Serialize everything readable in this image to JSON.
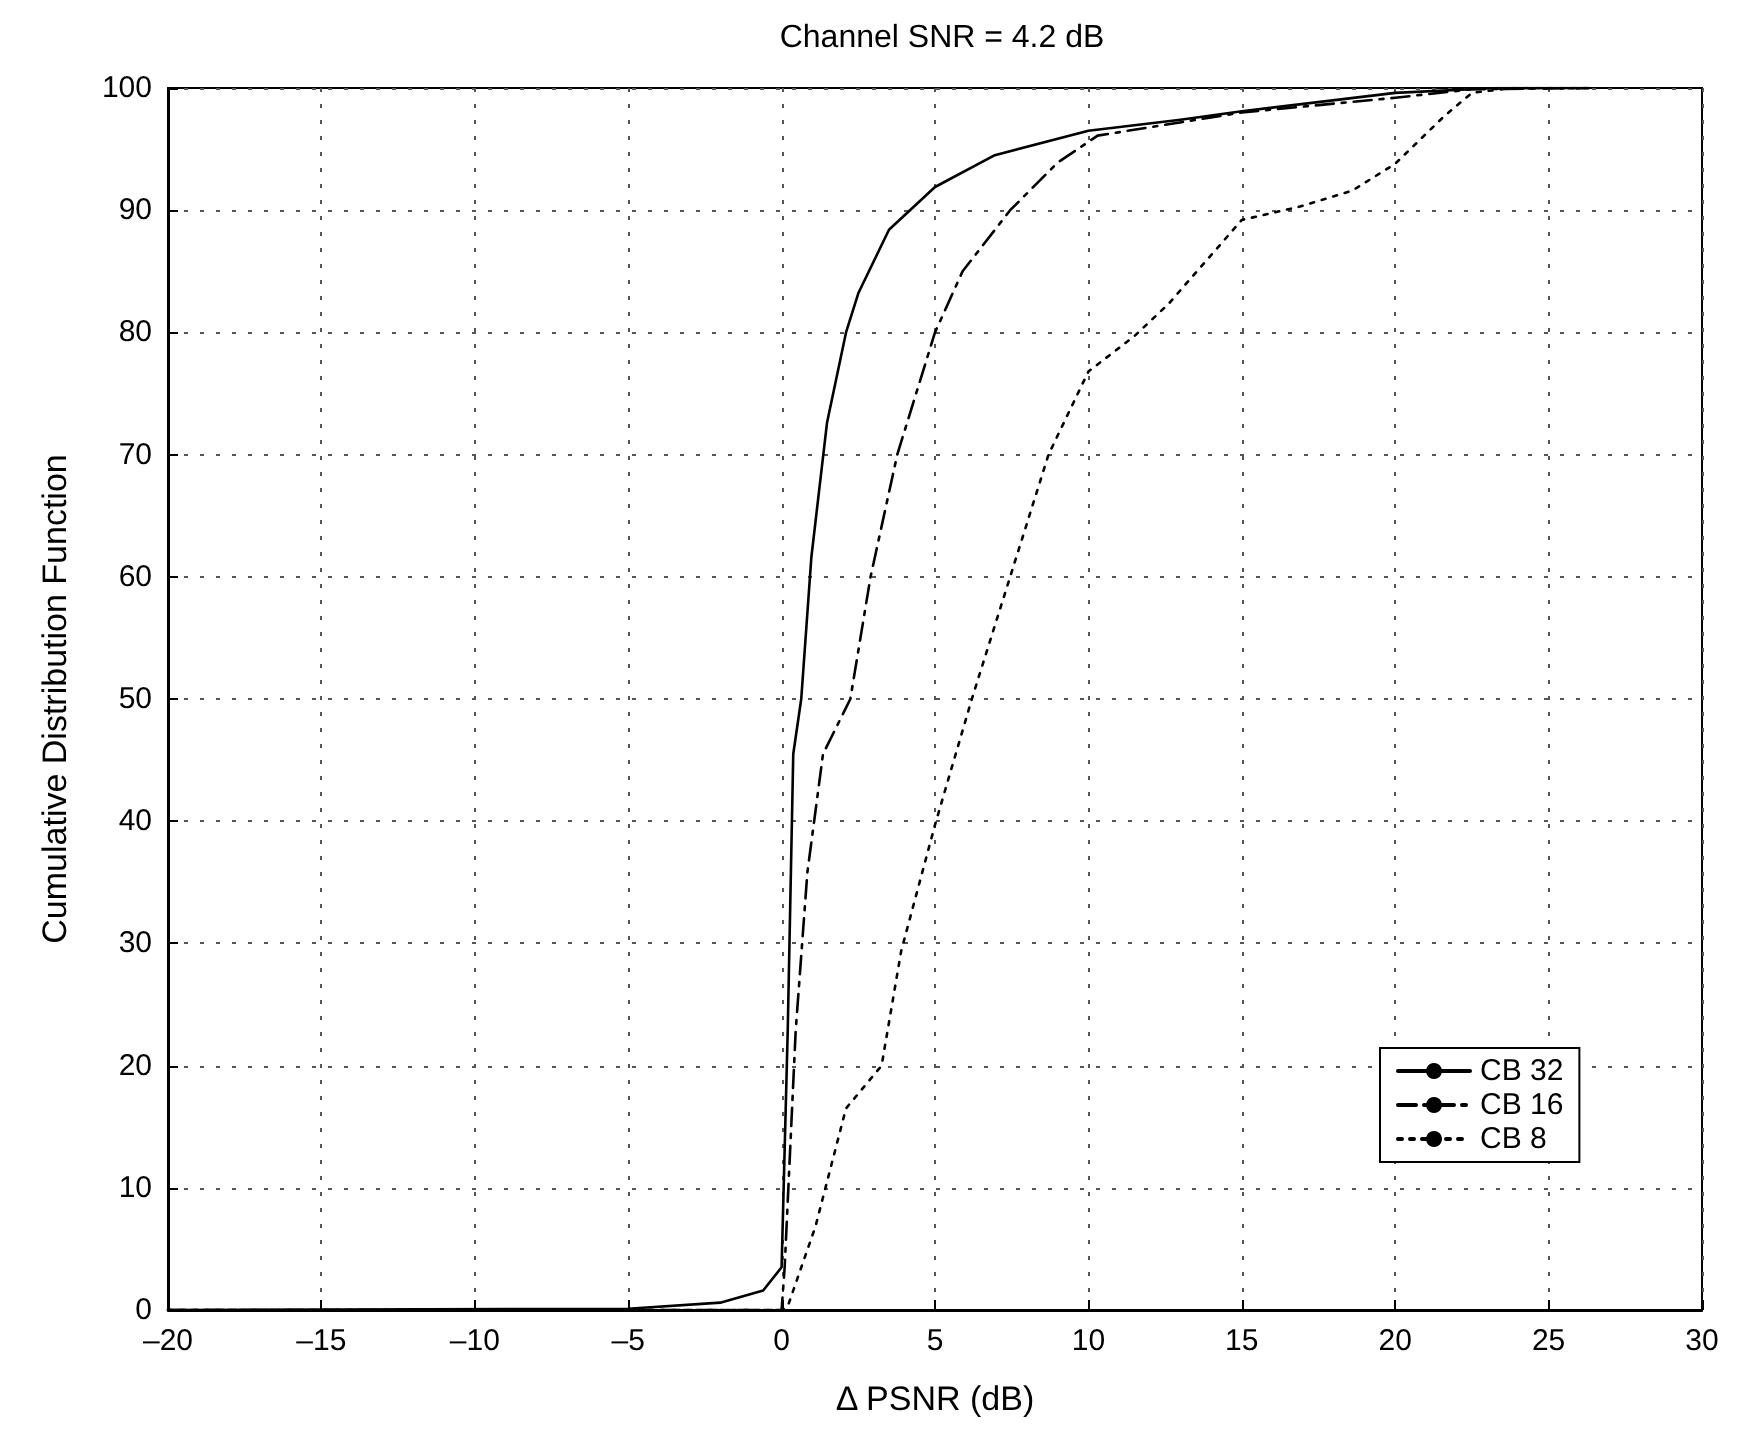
{
  "chart_data": {
    "type": "line",
    "title": "Channel SNR = 4.2 dB",
    "xlabel": "Δ PSNR (dB)",
    "ylabel": "Cumulative Distribution Function",
    "xlim": [
      -20,
      30
    ],
    "xticks": [
      {
        "value": -20,
        "label": "–20"
      },
      {
        "value": -15,
        "label": "–15"
      },
      {
        "value": -10,
        "label": "–10"
      },
      {
        "value": -5,
        "label": "–5"
      },
      0,
      5,
      10,
      15,
      20,
      25,
      30
    ],
    "ylim": [
      0,
      100
    ],
    "yticks": [
      0,
      10,
      20,
      30,
      40,
      50,
      60,
      70,
      80,
      90,
      100
    ],
    "grid": true,
    "legend": "bottom right",
    "marker": "none",
    "series": [
      {
        "name": "CB 32",
        "color": "#000000",
        "line_style": "solid",
        "x": [
          -20,
          -5,
          -2,
          -0.6,
          0,
          0.2,
          0.38,
          0.64,
          0.97,
          1.48,
          2.1,
          2.5,
          3.5,
          5,
          6.95,
          10,
          13,
          15,
          20,
          23.3,
          26.3
        ],
        "values": [
          0,
          0.1,
          0.6,
          1.6,
          3.5,
          22.9,
          45.5,
          50,
          61.6,
          72.6,
          80,
          83.2,
          88.4,
          91.9,
          94.5,
          96.5,
          97.4,
          98.1,
          99.6,
          100,
          100
        ]
      },
      {
        "name": "CB 16",
        "color": "#000000",
        "line_style": "dashed",
        "x": [
          -20,
          -5,
          0,
          0.1,
          0.46,
          0.84,
          1.35,
          2.24,
          2.9,
          3.77,
          5,
          5.9,
          7.45,
          9,
          10.3,
          15,
          20,
          22.5,
          26.3
        ],
        "values": [
          0,
          0,
          0,
          3.5,
          22.9,
          35.8,
          45.5,
          50,
          60,
          70,
          80,
          85,
          90,
          93.9,
          96.1,
          98,
          99.2,
          99.9,
          100
        ]
      },
      {
        "name": "CB 8",
        "color": "#000000",
        "line_style": "dotted",
        "x": [
          -20,
          0,
          0.2,
          1.1,
          2.1,
          3.26,
          3.9,
          5,
          6.2,
          7.45,
          8.7,
          10,
          11.5,
          12.6,
          15,
          16.9,
          18.6,
          20,
          21.6,
          22.5,
          23.8,
          26.3
        ],
        "values": [
          0,
          0,
          0.3,
          6.8,
          16.5,
          20,
          29.4,
          39.7,
          50,
          60,
          70,
          76.8,
          79.7,
          82.3,
          89.2,
          90.3,
          91.6,
          93.8,
          97.7,
          99.6,
          100,
          100
        ]
      }
    ]
  }
}
